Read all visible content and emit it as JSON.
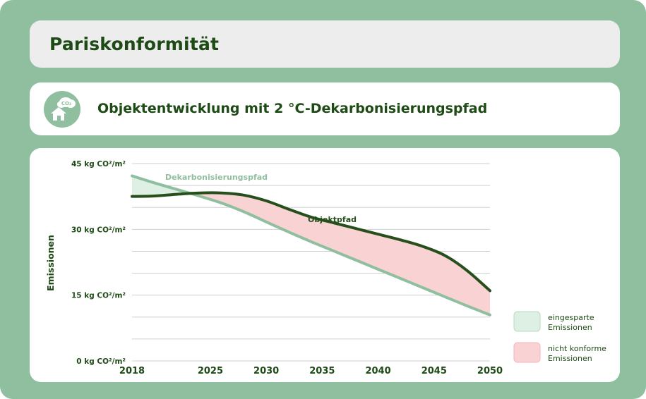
{
  "header": {
    "title": "Pariskonformität"
  },
  "subheader": {
    "title": "Objektentwicklung mit 2 °C-Dekarbonisierungspfad",
    "icon": "co2-house-icon",
    "icon_text": "CO₂"
  },
  "colors": {
    "frame": "#8fbf9f",
    "dark_green": "#1e4a16",
    "objekt_line": "#264f1c",
    "dekarb_line": "#8fbf9f",
    "saved_fill": "#deefe3",
    "nonconform_fill": "#f9d2d4"
  },
  "chart_data": {
    "type": "line",
    "title": "",
    "xlabel": "",
    "ylabel": "Emissionen",
    "x_ticks": [
      "2018",
      "2025",
      "2030",
      "2035",
      "2040",
      "2045",
      "2050"
    ],
    "y_ticks": [
      "0 kg CO²/m²",
      "15 kg CO²/m²",
      "30 kg CO²/m²",
      "45 kg CO²/m²"
    ],
    "xlim": [
      2018,
      2050
    ],
    "ylim": [
      0,
      45
    ],
    "grid": true,
    "series": [
      {
        "name": "Dekarbonisierungspfad",
        "color": "#8fbf9f",
        "x": [
          2018,
          2020,
          2022,
          2024,
          2026,
          2028,
          2030,
          2032,
          2034,
          2036,
          2038,
          2040,
          2042,
          2044,
          2046,
          2048,
          2050
        ],
        "values": [
          42.2,
          40.6,
          39.1,
          37.6,
          36.0,
          34.0,
          31.7,
          29.4,
          27.2,
          25.1,
          23.0,
          20.9,
          18.8,
          16.7,
          14.6,
          12.5,
          10.5
        ]
      },
      {
        "name": "Objektpfad",
        "color": "#264f1c",
        "x": [
          2018,
          2020,
          2022,
          2024,
          2026,
          2028,
          2030,
          2032,
          2034,
          2036,
          2038,
          2040,
          2042,
          2044,
          2046,
          2048,
          2050
        ],
        "values": [
          37.5,
          37.6,
          38.0,
          38.3,
          38.3,
          37.8,
          36.5,
          34.6,
          32.8,
          31.5,
          30.2,
          28.9,
          27.6,
          26.1,
          24.0,
          20.5,
          16.0
        ]
      }
    ],
    "legend": {
      "placement": "right",
      "items": [
        {
          "label_line1": "eingesparte",
          "label_line2": "Emissionen",
          "color": "#deefe3"
        },
        {
          "label_line1": "nicht konforme",
          "label_line2": "Emissionen",
          "color": "#f9d2d4"
        }
      ]
    }
  }
}
